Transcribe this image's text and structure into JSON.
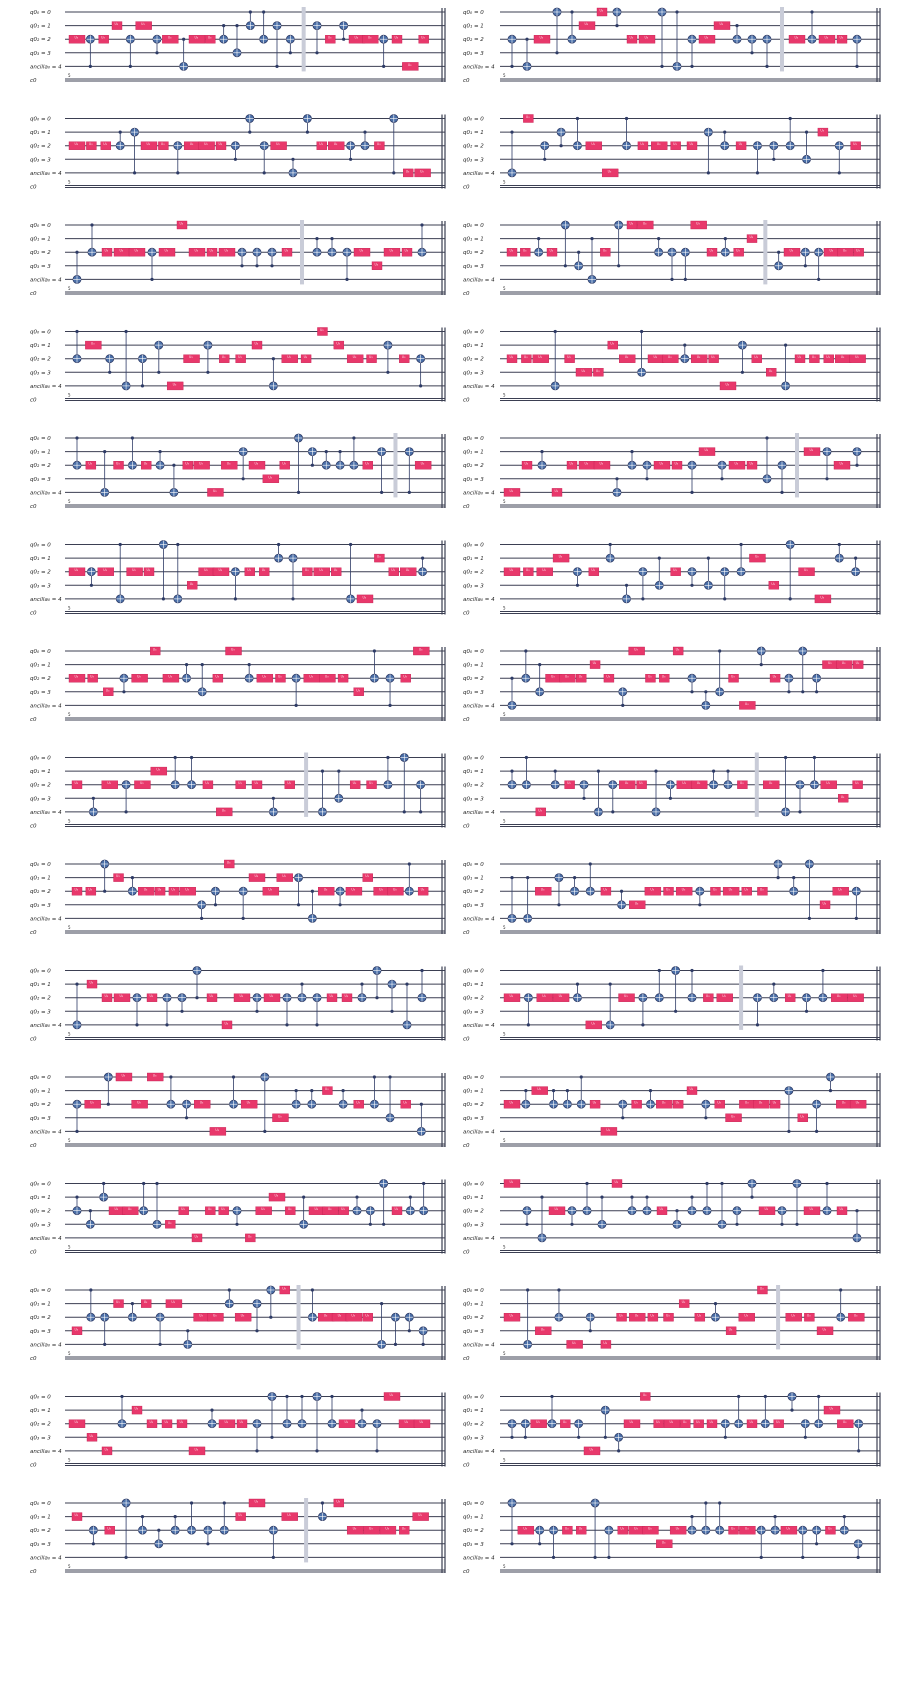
{
  "figure": {
    "wire_labels": [
      "q0₀ = 0",
      "q0₁ = 1",
      "q0₂ = 2",
      "q0₃ = 3",
      "ancilla₀ = 4",
      "c0"
    ],
    "classical_count": "5",
    "gate_label": "U₃",
    "measure_indices": [
      "0",
      "1"
    ],
    "panels": 30
  }
}
